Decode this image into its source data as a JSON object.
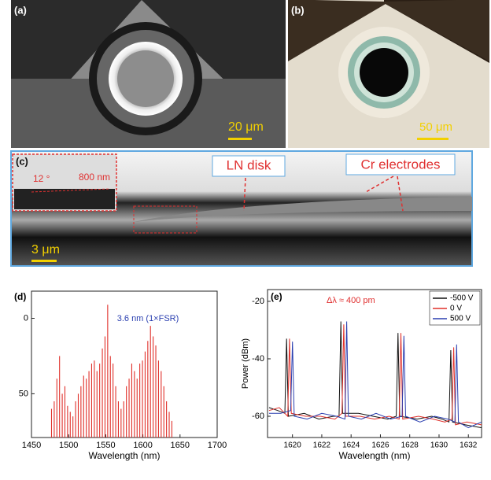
{
  "images": [
    {
      "label": "(a)",
      "scale_bar": "20 μm"
    },
    {
      "label": "(b)",
      "scale_bar": "50 μm"
    },
    {
      "label": "(c)",
      "scale_bar": "3 μm",
      "annotations": [
        "LN disk",
        "Cr electrodes"
      ],
      "inset": [
        "12 °",
        "800 nm"
      ]
    }
  ],
  "chart_data": [
    {
      "type": "spikes",
      "label": "(d)",
      "xlabel": "Wavelength (nm)",
      "annotation": "3.6 nm (1×FSR)",
      "color": "#e0302a",
      "xlim": [
        1450,
        1700
      ],
      "xticks": [
        1450,
        1500,
        1550,
        1600,
        1650,
        1700
      ],
      "ylim": [
        -79,
        18
      ],
      "yticks": [
        0,
        {
          "value": -50,
          "label": "50"
        }
      ],
      "series": [
        {
          "x": [
            1477,
            1480.6,
            1484.2,
            1487.8,
            1491.4,
            1495,
            1498.6,
            1502.2,
            1505.8,
            1509.4,
            1513,
            1516.6,
            1520.2,
            1523.8,
            1527.4,
            1531,
            1534.6,
            1538.2,
            1541.8,
            1545.4,
            1549,
            1552.6,
            1556.2,
            1559.8,
            1563.4,
            1567,
            1570.6,
            1574.2,
            1577.8,
            1581.4,
            1585,
            1588.6,
            1592.2,
            1595.8,
            1599.4,
            1603,
            1606.6,
            1610.2,
            1613.8,
            1617.4,
            1621,
            1624.6,
            1628.2,
            1631.8,
            1635.4,
            1639
          ],
          "values": [
            -60,
            -55,
            -40,
            -25,
            -50,
            -45,
            -58,
            -62,
            -65,
            -55,
            -50,
            -45,
            -38,
            -40,
            -35,
            -30,
            -28,
            -35,
            -30,
            -20,
            -12,
            9,
            -25,
            -30,
            -45,
            -55,
            -60,
            -55,
            -45,
            -40,
            -30,
            -35,
            -40,
            -30,
            -28,
            -22,
            -15,
            -5,
            -12,
            -18,
            -28,
            -35,
            -45,
            -55,
            -62,
            -68
          ]
        }
      ]
    },
    {
      "type": "line",
      "label": "(e)",
      "xlabel": "Wavelength (nm)",
      "ylabel": "Power (dBm)",
      "annotation": "Δλ ≈ 400 pm",
      "xlim": [
        1618.3,
        1632.9
      ],
      "xticks": [
        1620,
        1622,
        1624,
        1626,
        1628,
        1630,
        1632
      ],
      "ylim": [
        -67.4,
        -15.9
      ],
      "yticks": [
        -20,
        -40,
        -60
      ],
      "legend": "upper right",
      "series": [
        {
          "name": "-500 V",
          "color": "#111111",
          "x": [
            1618.4,
            1619.0,
            1619.48,
            1619.6,
            1619.72,
            1620.8,
            1621.8,
            1622.8,
            1623.18,
            1623.3,
            1623.42,
            1624.5,
            1625.5,
            1626.5,
            1627.08,
            1627.2,
            1627.32,
            1628.5,
            1629.5,
            1630.2,
            1630.68,
            1630.8,
            1630.92,
            1631.8,
            1632.9
          ],
          "values": [
            -57,
            -58,
            -59,
            -33,
            -60,
            -59,
            -61,
            -60,
            -60,
            -27,
            -59,
            -59,
            -60,
            -61,
            -60,
            -31,
            -60,
            -61,
            -60,
            -61,
            -62,
            -37,
            -62,
            -63,
            -64
          ]
        },
        {
          "name": "0 V",
          "color": "#e0302a",
          "x": [
            1618.4,
            1619.1,
            1619.68,
            1619.8,
            1619.92,
            1620.9,
            1621.9,
            1622.9,
            1623.38,
            1623.5,
            1623.62,
            1624.6,
            1625.6,
            1626.6,
            1627.28,
            1627.4,
            1627.52,
            1628.6,
            1629.6,
            1630.4,
            1630.88,
            1631.0,
            1631.12,
            1631.9,
            1632.9
          ],
          "values": [
            -58,
            -57,
            -60,
            -33,
            -59,
            -60,
            -60,
            -61,
            -59,
            -28,
            -60,
            -60,
            -61,
            -60,
            -61,
            -31,
            -61,
            -60,
            -61,
            -62,
            -61,
            -36,
            -63,
            -62,
            -63
          ]
        },
        {
          "name": "500 V",
          "color": "#2a3fb0",
          "x": [
            1618.4,
            1619.2,
            1619.88,
            1620.0,
            1620.12,
            1621.0,
            1622.0,
            1623.0,
            1623.58,
            1623.7,
            1623.82,
            1624.7,
            1625.7,
            1626.7,
            1627.48,
            1627.6,
            1627.72,
            1628.7,
            1629.7,
            1630.6,
            1631.08,
            1631.2,
            1631.32,
            1632.0,
            1632.9
          ],
          "values": [
            -59,
            -59,
            -58,
            -34,
            -60,
            -61,
            -59,
            -60,
            -61,
            -27,
            -60,
            -61,
            -59,
            -61,
            -60,
            -32,
            -60,
            -62,
            -60,
            -61,
            -62,
            -35,
            -62,
            -64,
            -62
          ]
        }
      ]
    }
  ]
}
